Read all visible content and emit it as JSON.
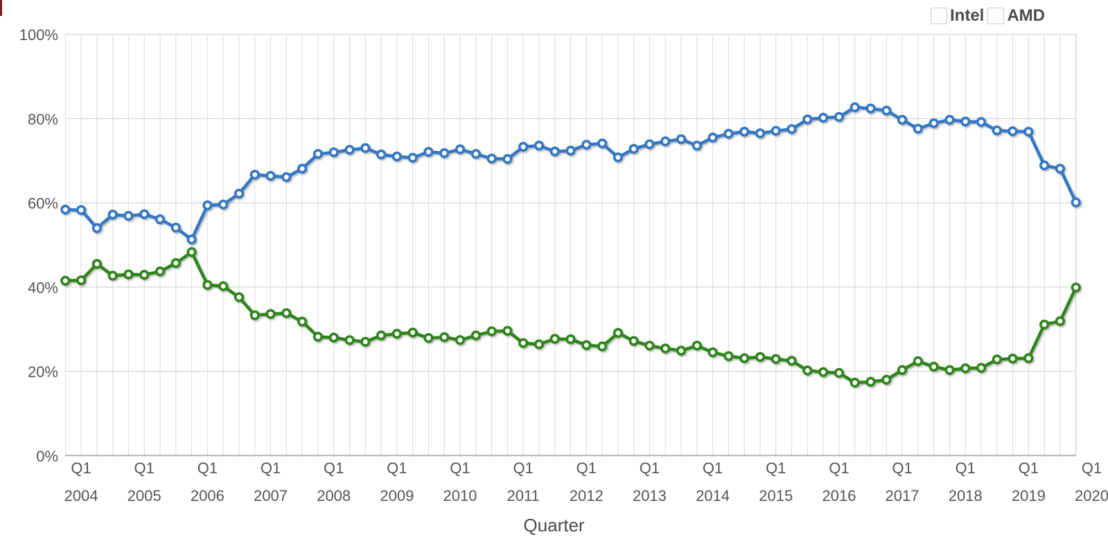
{
  "figure": {
    "background": "#ffffff",
    "x_axis_title": "Quarter"
  },
  "legend": {
    "position": "top-right",
    "items": [
      {
        "label": "Intel",
        "color": "#3478c4"
      },
      {
        "label": "AMD",
        "color": "#2f851c"
      }
    ]
  },
  "chart_data": {
    "type": "line",
    "title": "",
    "xlabel": "Quarter",
    "ylabel": "",
    "ylim": [
      0,
      100
    ],
    "grid": true,
    "legend_position": "top-right",
    "y_tick_labels": [
      "100%",
      "80%",
      "60%",
      "40%",
      "20%",
      "0%"
    ],
    "x_ticks": [
      {
        "q": "Q1",
        "year": "2004"
      },
      {
        "q": "Q1",
        "year": "2005"
      },
      {
        "q": "Q1",
        "year": "2006"
      },
      {
        "q": "Q1",
        "year": "2007"
      },
      {
        "q": "Q1",
        "year": "2008"
      },
      {
        "q": "Q1",
        "year": "2009"
      },
      {
        "q": "Q1",
        "year": "2010"
      },
      {
        "q": "Q1",
        "year": "2011"
      },
      {
        "q": "Q1",
        "year": "2012"
      },
      {
        "q": "Q1",
        "year": "2013"
      },
      {
        "q": "Q1",
        "year": "2014"
      },
      {
        "q": "Q1",
        "year": "2015"
      },
      {
        "q": "Q1",
        "year": "2016"
      },
      {
        "q": "Q1",
        "year": "2017"
      },
      {
        "q": "Q1",
        "year": "2018"
      },
      {
        "q": "Q1",
        "year": "2019"
      },
      {
        "q": "Q1",
        "year": "2020"
      }
    ],
    "x": [
      "Q1 2004",
      "Q2 2004",
      "Q3 2004",
      "Q4 2004",
      "Q1 2005",
      "Q2 2005",
      "Q3 2005",
      "Q4 2005",
      "Q1 2006",
      "Q2 2006",
      "Q3 2006",
      "Q4 2006",
      "Q1 2007",
      "Q2 2007",
      "Q3 2007",
      "Q4 2007",
      "Q1 2008",
      "Q2 2008",
      "Q3 2008",
      "Q4 2008",
      "Q1 2009",
      "Q2 2009",
      "Q3 2009",
      "Q4 2009",
      "Q1 2010",
      "Q2 2010",
      "Q3 2010",
      "Q4 2010",
      "Q1 2011",
      "Q2 2011",
      "Q3 2011",
      "Q4 2011",
      "Q1 2012",
      "Q2 2012",
      "Q3 2012",
      "Q4 2012",
      "Q1 2013",
      "Q2 2013",
      "Q3 2013",
      "Q4 2013",
      "Q1 2014",
      "Q2 2014",
      "Q3 2014",
      "Q4 2014",
      "Q1 2015",
      "Q2 2015",
      "Q3 2015",
      "Q4 2015",
      "Q1 2016",
      "Q2 2016",
      "Q3 2016",
      "Q4 2016",
      "Q1 2017",
      "Q2 2017",
      "Q3 2017",
      "Q4 2017",
      "Q1 2018",
      "Q2 2018",
      "Q3 2018",
      "Q4 2018",
      "Q1 2019",
      "Q2 2019",
      "Q3 2019",
      "Q4 2019",
      "Q1 2020"
    ],
    "series": [
      {
        "name": "Intel",
        "color": "#3478c4",
        "values": [
          58.4,
          58.3,
          54.0,
          57.2,
          56.9,
          57.3,
          56.1,
          54.1,
          51.3,
          59.4,
          59.6,
          62.2,
          66.7,
          66.4,
          66.1,
          68.1,
          71.6,
          72.0,
          72.6,
          73.0,
          71.5,
          71.0,
          70.7,
          72.1,
          71.8,
          72.7,
          71.6,
          70.5,
          70.4,
          73.3,
          73.6,
          72.2,
          72.4,
          73.8,
          74.1,
          70.8,
          72.8,
          73.9,
          74.6,
          75.1,
          73.6,
          75.5,
          76.4,
          76.9,
          76.5,
          77.1,
          77.5,
          79.8,
          80.2,
          80.4,
          82.7,
          82.4,
          81.9,
          79.7,
          77.6,
          78.9,
          79.7,
          79.3,
          79.2,
          77.2,
          77.0,
          76.9,
          68.9,
          68.1,
          60.1
        ]
      },
      {
        "name": "AMD",
        "color": "#2f851c",
        "values": [
          41.5,
          41.6,
          45.5,
          42.7,
          43.0,
          42.9,
          43.7,
          45.7,
          48.3,
          40.5,
          40.2,
          37.6,
          33.3,
          33.6,
          33.8,
          31.8,
          28.2,
          28.0,
          27.4,
          27.0,
          28.5,
          28.9,
          29.2,
          27.9,
          28.1,
          27.4,
          28.5,
          29.5,
          29.6,
          26.7,
          26.4,
          27.7,
          27.6,
          26.2,
          25.9,
          29.1,
          27.2,
          26.1,
          25.4,
          24.9,
          26.1,
          24.5,
          23.6,
          23.1,
          23.4,
          22.9,
          22.5,
          20.2,
          19.8,
          19.6,
          17.3,
          17.5,
          18.0,
          20.3,
          22.4,
          21.1,
          20.3,
          20.7,
          20.8,
          22.8,
          23.0,
          23.1,
          31.1,
          31.9,
          39.9
        ]
      }
    ]
  },
  "style": {
    "vertical_gridline_color": "#dadada",
    "horizontal_gridline_color": "#cccccc",
    "axis_line_color": "#b0b0b0",
    "tick_label_color": "#555555",
    "marker_fill": "#ffffff"
  }
}
